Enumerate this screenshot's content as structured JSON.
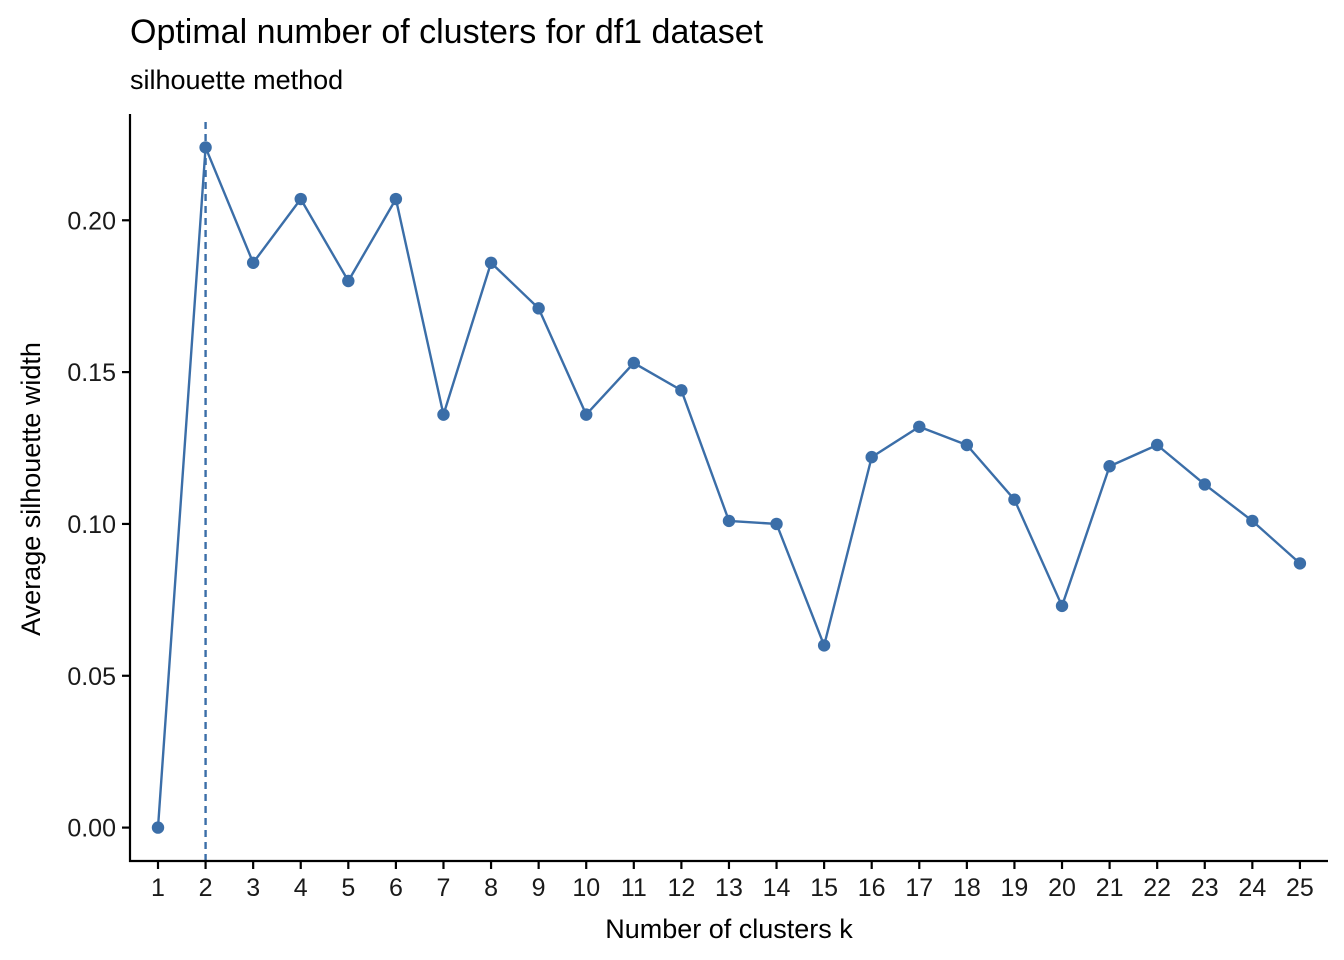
{
  "chart_data": {
    "type": "line",
    "title": "Optimal number of clusters for df1 dataset",
    "subtitle": "silhouette method",
    "xlabel": "Number of clusters k",
    "ylabel": "Average silhouette width",
    "categories": [
      "1",
      "2",
      "3",
      "4",
      "5",
      "6",
      "7",
      "8",
      "9",
      "10",
      "11",
      "12",
      "13",
      "14",
      "15",
      "16",
      "17",
      "18",
      "19",
      "20",
      "21",
      "22",
      "23",
      "24",
      "25"
    ],
    "series": [
      {
        "values": [
          0.0,
          0.224,
          0.186,
          0.207,
          0.18,
          0.207,
          0.136,
          0.186,
          0.171,
          0.136,
          0.153,
          0.144,
          0.101,
          0.1,
          0.06,
          0.122,
          0.132,
          0.126,
          0.108,
          0.073,
          0.119,
          0.126,
          0.113,
          0.101,
          0.087
        ]
      }
    ],
    "yticks": [
      "0.00",
      "0.05",
      "0.10",
      "0.15",
      "0.20"
    ],
    "ylim": [
      -0.011,
      0.235
    ],
    "optimal_k": "2",
    "grid": false,
    "colors": {
      "line": "#3b6ea8",
      "point": "#3b6ea8",
      "reference_line": "#3b6ea8",
      "axis": "#000000"
    }
  }
}
